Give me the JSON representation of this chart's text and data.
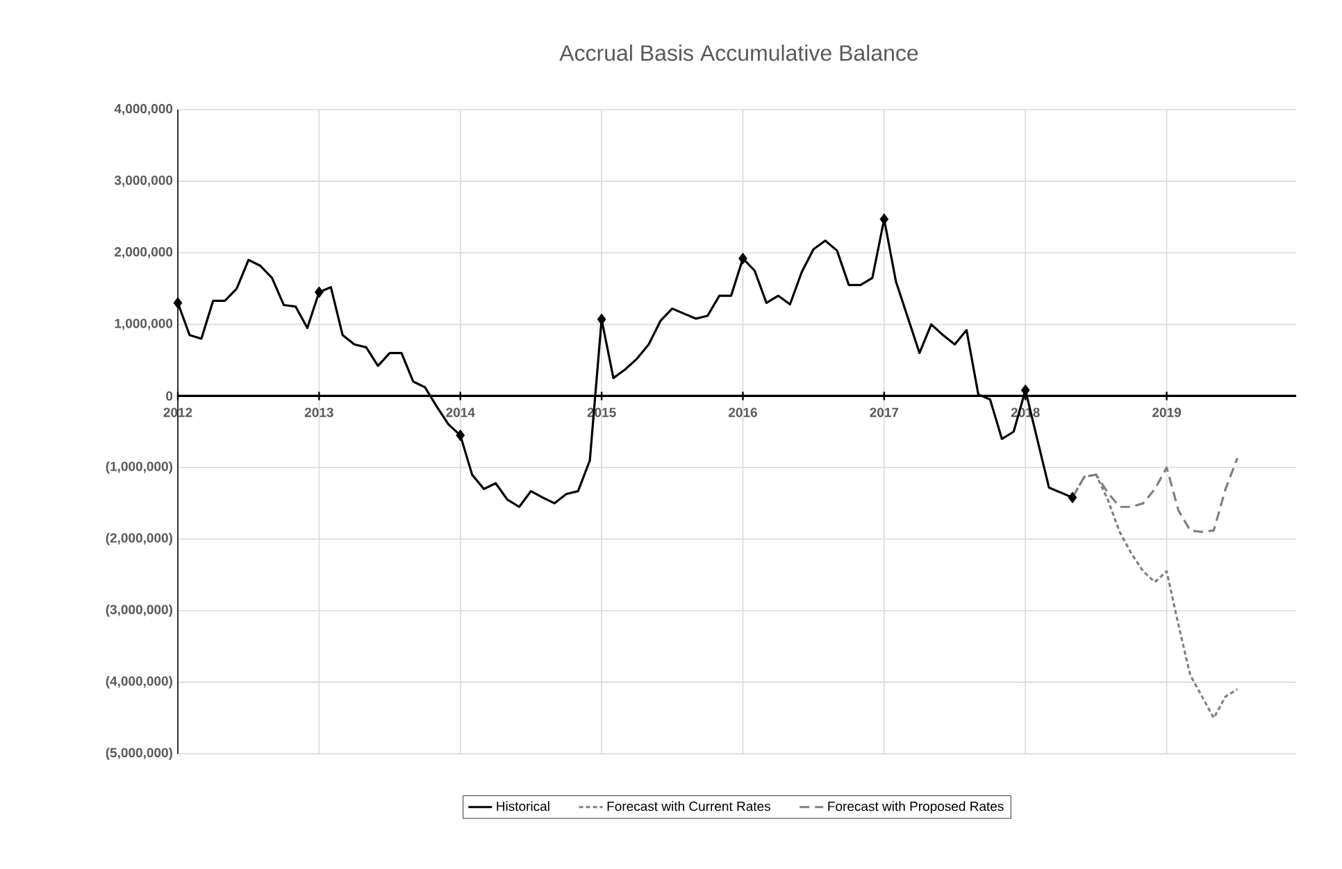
{
  "chart_data": {
    "type": "line",
    "title": "Accrual Basis Accumulative Balance",
    "x": [
      "2012-01",
      "2012-02",
      "2012-03",
      "2012-04",
      "2012-05",
      "2012-06",
      "2012-07",
      "2012-08",
      "2012-09",
      "2012-10",
      "2012-11",
      "2012-12",
      "2013-01",
      "2013-02",
      "2013-03",
      "2013-04",
      "2013-05",
      "2013-06",
      "2013-07",
      "2013-08",
      "2013-09",
      "2013-10",
      "2013-11",
      "2013-12",
      "2014-01",
      "2014-02",
      "2014-03",
      "2014-04",
      "2014-05",
      "2014-06",
      "2014-07",
      "2014-08",
      "2014-09",
      "2014-10",
      "2014-11",
      "2014-12",
      "2015-01",
      "2015-02",
      "2015-03",
      "2015-04",
      "2015-05",
      "2015-06",
      "2015-07",
      "2015-08",
      "2015-09",
      "2015-10",
      "2015-11",
      "2015-12",
      "2016-01",
      "2016-02",
      "2016-03",
      "2016-04",
      "2016-05",
      "2016-06",
      "2016-07",
      "2016-08",
      "2016-09",
      "2016-10",
      "2016-11",
      "2016-12",
      "2017-01",
      "2017-02",
      "2017-03",
      "2017-04",
      "2017-05",
      "2017-06",
      "2017-07",
      "2017-08",
      "2017-09",
      "2017-10",
      "2017-11",
      "2017-12",
      "2018-01",
      "2018-02",
      "2018-03",
      "2018-04",
      "2018-05"
    ],
    "series": [
      {
        "name": "Historical",
        "color": "#000000",
        "line_style": "solid",
        "values": [
          1300000,
          850000,
          800000,
          1330000,
          1330000,
          1500000,
          1900000,
          1820000,
          1650000,
          1270000,
          1250000,
          950000,
          1450000,
          1520000,
          850000,
          720000,
          680000,
          420000,
          600000,
          600000,
          200000,
          120000,
          -150000,
          -400000,
          -550000,
          -1100000,
          -1300000,
          -1220000,
          -1450000,
          -1550000,
          -1330000,
          -1420000,
          -1500000,
          -1370000,
          -1330000,
          -900000,
          1070000,
          250000,
          370000,
          520000,
          720000,
          1050000,
          1220000,
          1150000,
          1080000,
          1120000,
          1400000,
          1400000,
          1920000,
          1750000,
          1300000,
          1400000,
          1280000,
          1730000,
          2050000,
          2170000,
          2030000,
          1550000,
          1550000,
          1650000,
          2470000,
          1600000,
          1100000,
          600000,
          1000000,
          850000,
          720000,
          920000,
          20000,
          -50000,
          -600000,
          -500000,
          80000,
          -600000,
          -1280000,
          -1350000,
          -1420000
        ]
      },
      {
        "type": "scatter",
        "color": "#000000",
        "marker": "diamond",
        "x": [
          "2012-01",
          "2013-01",
          "2014-01",
          "2015-01",
          "2016-01",
          "2017-01",
          "2018-01",
          "2018-05"
        ],
        "values": [
          1300000,
          1450000,
          -550000,
          1070000,
          1920000,
          2470000,
          80000,
          -1420000
        ]
      },
      {
        "name": "Forecast with Current Rates",
        "color": "#808080",
        "line_style": "dotted",
        "x": [
          "2018-05",
          "2018-06",
          "2018-07",
          "2018-08",
          "2018-09",
          "2018-10",
          "2018-11",
          "2018-12",
          "2019-01",
          "2019-02",
          "2019-03",
          "2019-04",
          "2019-05",
          "2019-06",
          "2019-07"
        ],
        "values": [
          -1420000,
          -1130000,
          -1100000,
          -1450000,
          -1900000,
          -2200000,
          -2450000,
          -2600000,
          -2450000,
          -3200000,
          -3900000,
          -4200000,
          -4500000,
          -4200000,
          -4100000
        ]
      },
      {
        "name": "Forecast with Proposed Rates",
        "color": "#808080",
        "line_style": "dashed",
        "x": [
          "2018-05",
          "2018-06",
          "2018-07",
          "2018-08",
          "2018-09",
          "2018-10",
          "2018-11",
          "2018-12",
          "2019-01",
          "2019-02",
          "2019-03",
          "2019-04",
          "2019-05",
          "2019-06",
          "2019-07"
        ],
        "values": [
          -1420000,
          -1130000,
          -1100000,
          -1350000,
          -1550000,
          -1550000,
          -1500000,
          -1300000,
          -1000000,
          -1600000,
          -1880000,
          -1900000,
          -1880000,
          -1300000,
          -870000
        ]
      }
    ],
    "xlim": [
      "2012-01",
      "2019-12"
    ],
    "xticks": [
      "2012",
      "2013",
      "2014",
      "2015",
      "2016",
      "2017",
      "2018",
      "2019"
    ],
    "ylim": [
      -5000000,
      4000000
    ],
    "yticks": [
      {
        "value": -5000000,
        "label": "(5,000,000)"
      },
      {
        "value": -4000000,
        "label": "(4,000,000)"
      },
      {
        "value": -3000000,
        "label": "(3,000,000)"
      },
      {
        "value": -2000000,
        "label": "(2,000,000)"
      },
      {
        "value": -1000000,
        "label": "(1,000,000)"
      },
      0,
      {
        "value": 1000000,
        "label": "1,000,000"
      },
      {
        "value": 2000000,
        "label": "2,000,000"
      },
      {
        "value": 3000000,
        "label": "3,000,000"
      },
      {
        "value": 4000000,
        "label": "4,000,000"
      }
    ],
    "grid": true,
    "legend": "bottom"
  }
}
